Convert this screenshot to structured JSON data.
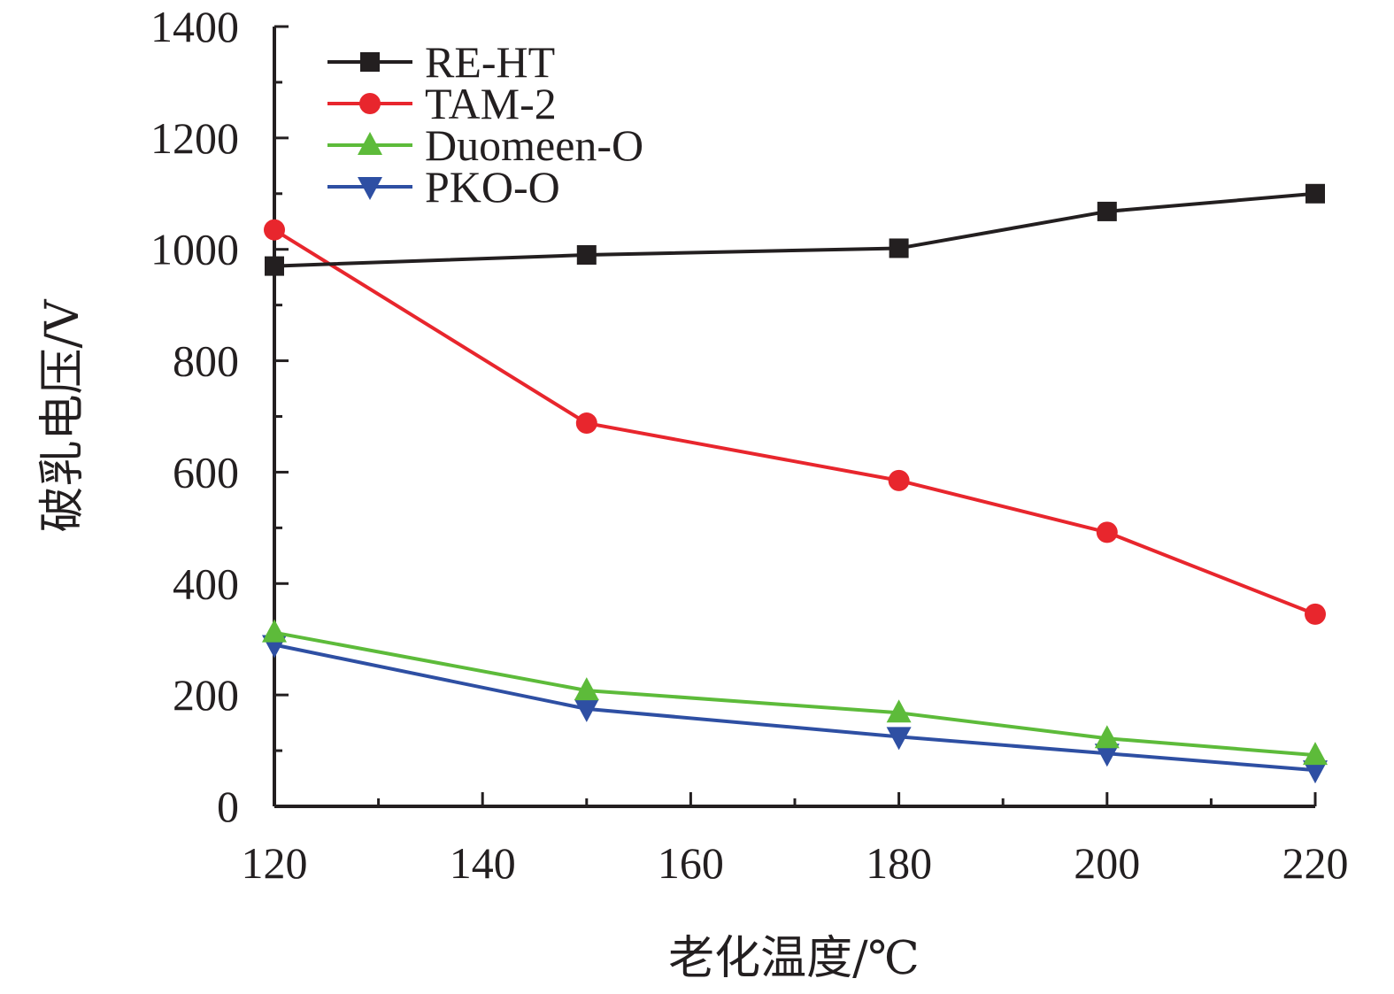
{
  "chart_data": {
    "type": "line",
    "xlabel": "老化温度/℃",
    "ylabel": "破乳电压/V",
    "xlim": [
      120,
      220
    ],
    "ylim": [
      0,
      1400
    ],
    "xticks": [
      120,
      140,
      160,
      180,
      200,
      220
    ],
    "yticks": [
      0,
      200,
      400,
      600,
      800,
      1000,
      1200,
      1400
    ],
    "x_minor_step": 10,
    "y_minor_step": 100,
    "grid": false,
    "legend_position": "top-left",
    "axis_color": "#231f20",
    "x": [
      120,
      150,
      180,
      200,
      220
    ],
    "series": [
      {
        "name": "RE-HT",
        "color": "#231f20",
        "marker": "square",
        "values": [
          970,
          990,
          1002,
          1068,
          1100
        ]
      },
      {
        "name": "TAM-2",
        "color": "#e8262d",
        "marker": "circle",
        "values": [
          1035,
          688,
          585,
          492,
          345
        ]
      },
      {
        "name": "Duomeen-O",
        "color": "#5dbb3a",
        "marker": "triangle-up",
        "values": [
          312,
          208,
          168,
          122,
          92
        ]
      },
      {
        "name": "PKO-O",
        "color": "#2e4fa3",
        "marker": "triangle-down",
        "values": [
          290,
          175,
          125,
          95,
          65
        ]
      }
    ]
  }
}
